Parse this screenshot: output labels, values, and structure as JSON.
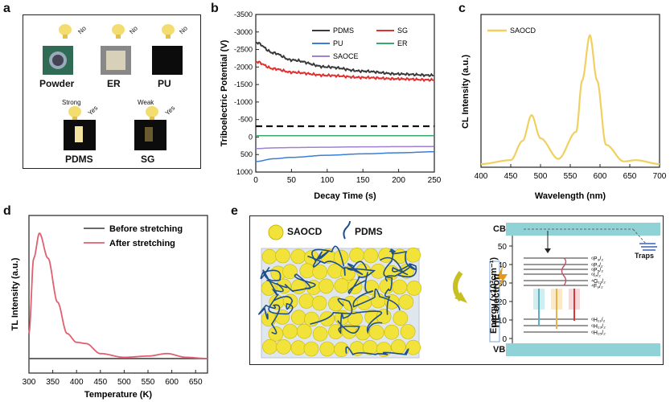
{
  "panels": {
    "a": {
      "letter": "a",
      "samples": [
        {
          "name": "Powder",
          "strength": "",
          "result": "No"
        },
        {
          "name": "ER",
          "strength": "",
          "result": "No"
        },
        {
          "name": "PU",
          "strength": "",
          "result": "No"
        },
        {
          "name": "PDMS",
          "strength": "Strong",
          "result": "Yes"
        },
        {
          "name": "SG",
          "strength": "Weak",
          "result": "Yes"
        }
      ]
    },
    "b": {
      "letter": "b",
      "ylabel": "Triboelectric Potential (V)",
      "xlabel": "Decay Time (s)",
      "yticks": [
        "-3500",
        "-3000",
        "-2500",
        "-2000",
        "-1500",
        "-1000",
        "-500",
        "0",
        "500",
        "1000"
      ],
      "xticks": [
        "0",
        "50",
        "100",
        "150",
        "200",
        "250"
      ],
      "legend": [
        "PDMS",
        "SG",
        "PU",
        "ER",
        "SAOCE"
      ]
    },
    "c": {
      "letter": "c",
      "ylabel": "CL Intensity (a.u.)",
      "xlabel": "Wavelength (nm)",
      "xticks": [
        "400",
        "450",
        "500",
        "550",
        "600",
        "650",
        "700"
      ],
      "legend": [
        "SAOCD"
      ]
    },
    "d": {
      "letter": "d",
      "ylabel": "TL Intensity (a.u.)",
      "xlabel": "Temperature (K)",
      "xticks": [
        "300",
        "350",
        "400",
        "450",
        "500",
        "550",
        "600",
        "650"
      ],
      "legend": [
        "Before stretching",
        "After stretching"
      ]
    },
    "e": {
      "letter": "e",
      "legend_saocd": "SAOCD",
      "legend_pdms": "PDMS",
      "cb": "CB",
      "vb": "VB",
      "traps": "Traps",
      "he_electron": "HE electron",
      "energy_label": "Energy (x10³cm⁻¹)",
      "energy_ticks": [
        "0",
        "10",
        "20",
        "30",
        "40",
        "50"
      ],
      "levels": [
        "⁶P₃/₂",
        "⁶P₇/₂",
        "⁶P₅/₂",
        "⁶I₇/₂",
        "⁴G₁₁/₂",
        "⁴F₉/₂",
        "⁶H₁₁/₂",
        "⁶H₁₃/₂",
        "⁶H₁₅/₂"
      ]
    }
  },
  "colors": {
    "PDMS": "#3a3a3a",
    "SG": "#e03030",
    "PU": "#3a7fd5",
    "ER": "#3aaa6a",
    "SAOCE": "#a080d0",
    "SAOCD": "#f0d060",
    "before": "#555555",
    "after": "#e06070"
  },
  "chart_data": [
    {
      "type": "line",
      "xlabel": "Decay Time (s)",
      "ylabel": "Triboelectric Potential (V)",
      "xlim": [
        0,
        250
      ],
      "ylim": [
        1000,
        -3500
      ],
      "x": [
        0,
        25,
        50,
        100,
        150,
        200,
        250
      ],
      "series": [
        {
          "name": "PDMS",
          "values": [
            -2700,
            -2400,
            -2200,
            -2000,
            -1880,
            -1800,
            -1760
          ]
        },
        {
          "name": "SG",
          "values": [
            -2150,
            -1950,
            -1850,
            -1760,
            -1700,
            -1660,
            -1630
          ]
        },
        {
          "name": "ER",
          "values": [
            -40,
            -40,
            -40,
            -40,
            -40,
            -40,
            -40
          ]
        },
        {
          "name": "PU",
          "values": [
            700,
            620,
            580,
            520,
            480,
            450,
            420
          ]
        },
        {
          "name": "SAOCE",
          "values": [
            330,
            310,
            300,
            290,
            280,
            275,
            270
          ]
        }
      ]
    },
    {
      "type": "line",
      "xlabel": "Wavelength (nm)",
      "ylabel": "CL Intensity (a.u.)",
      "xlim": [
        400,
        700
      ],
      "x": [
        400,
        450,
        470,
        485,
        500,
        530,
        560,
        570,
        583,
        595,
        610,
        640,
        660,
        700
      ],
      "series": [
        {
          "name": "SAOCD",
          "values": [
            0.0,
            0.03,
            0.18,
            0.38,
            0.2,
            0.04,
            0.25,
            0.65,
            1.0,
            0.65,
            0.15,
            0.02,
            0.03,
            0.0
          ]
        }
      ]
    },
    {
      "type": "line",
      "xlabel": "Temperature (K)",
      "ylabel": "TL Intensity (a.u.)",
      "xlim": [
        300,
        675
      ],
      "x": [
        300,
        310,
        322,
        340,
        360,
        380,
        400,
        420,
        450,
        500,
        550,
        590,
        630,
        675
      ],
      "series": [
        {
          "name": "Before stretching",
          "values": [
            0.0,
            0.0,
            0.0,
            0.0,
            0.0,
            0.0,
            0.0,
            0.0,
            0.0,
            0.0,
            0.0,
            0.0,
            0.0,
            0.0
          ]
        },
        {
          "name": "After stretching",
          "values": [
            0.2,
            0.8,
            1.0,
            0.8,
            0.45,
            0.2,
            0.13,
            0.12,
            0.04,
            0.01,
            0.02,
            0.04,
            0.01,
            0.0
          ]
        }
      ]
    }
  ]
}
